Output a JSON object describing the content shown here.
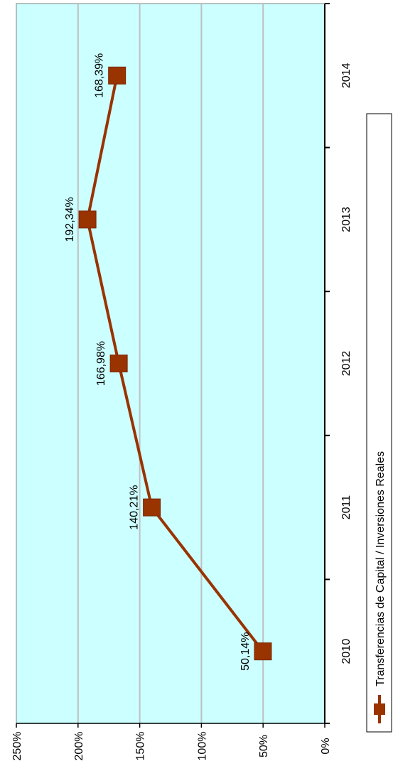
{
  "chart_data": {
    "type": "line",
    "categories": [
      "2010",
      "2011",
      "2012",
      "2013",
      "2014"
    ],
    "series": [
      {
        "name": "Transferencias de Capital / Inversiones Reales",
        "values": [
          50.14,
          140.21,
          166.98,
          192.34,
          168.39
        ],
        "data_labels": [
          "50,14%",
          "140,21%",
          "166,98%",
          "192,34%",
          "168,39%"
        ],
        "color": "#993300",
        "marker": "square"
      }
    ],
    "y_ticks": [
      {
        "value": 0,
        "label": "0%"
      },
      {
        "value": 50,
        "label": "50%"
      },
      {
        "value": 100,
        "label": "100%"
      },
      {
        "value": 150,
        "label": "150%"
      },
      {
        "value": 200,
        "label": "200%"
      },
      {
        "value": 250,
        "label": "250%"
      }
    ],
    "ylim": [
      0,
      250
    ],
    "grid": true,
    "plot_background": "#ccffff",
    "gridline_color": "#c0c0c0",
    "legend_position": "bottom",
    "orientation": "rotated 90 degrees clockwise"
  }
}
